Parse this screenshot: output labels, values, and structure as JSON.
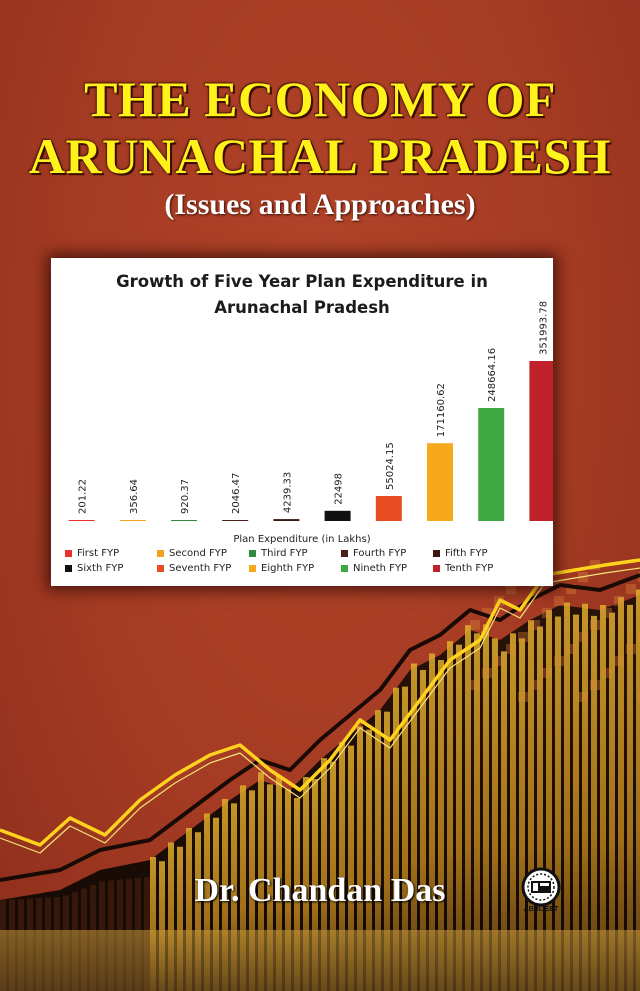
{
  "book": {
    "title_line1": "THE ECONOMY OF",
    "title_line2": "ARUNACHAL PRADESH",
    "subtitle": "(Issues and Approaches)",
    "author": "Dr. Chandan Das",
    "publisher_logo_text": "ABHIJEET"
  },
  "colors": {
    "background": "#a53b23",
    "title": "#fff11a",
    "trend_line": "#ffd21e",
    "bars_gold": "#d6a52a"
  },
  "chart_data": {
    "type": "bar",
    "title": "Growth of Five Year Plan Expenditure in\nArunachal Pradesh",
    "xlabel": "Plan Expenditure (in Lakhs)",
    "categories": [
      "First FYP",
      "Second FYP",
      "Third FYP",
      "Fourth FYP",
      "Fifth FYP",
      "Sixth FYP",
      "Seventh FYP",
      "Eighth FYP",
      "Nineth FYP",
      "Tenth FYP"
    ],
    "values": [
      201.22,
      356.64,
      920.37,
      2046.47,
      4239.33,
      22498,
      55024.15,
      171160.62,
      248664.16,
      351993.78
    ],
    "data_labels": [
      "201.22",
      "356.64",
      "920.37",
      "2046.47",
      "4239.33",
      "22498",
      "55024.15",
      "171160.62",
      "248664.16",
      "351993.78"
    ],
    "colors": [
      "#e8312f",
      "#f5a01f",
      "#2e8b3e",
      "#4a1f1a",
      "#3b1711",
      "#111111",
      "#e84c22",
      "#f7a81b",
      "#3ea843",
      "#c0202a"
    ],
    "legend_position": "bottom",
    "grid": false
  }
}
